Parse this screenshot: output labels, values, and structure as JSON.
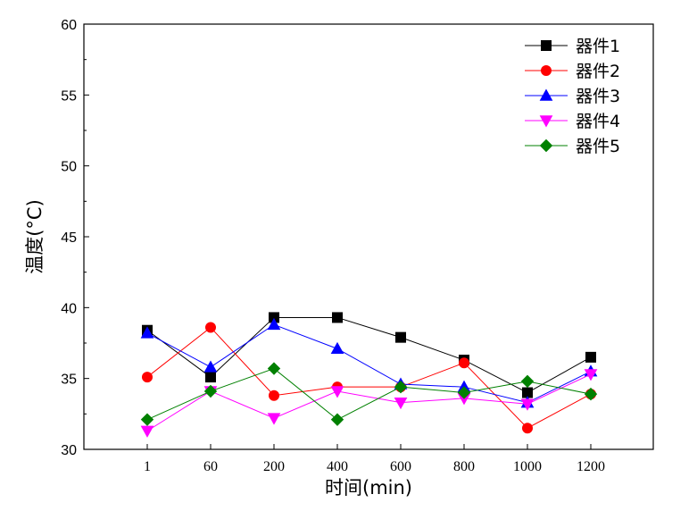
{
  "chart_data": {
    "type": "line",
    "title": "",
    "xlabel": "时间(min)",
    "ylabel": "温度(°C)",
    "categories": [
      "1",
      "60",
      "200",
      "400",
      "600",
      "800",
      "1000",
      "1200"
    ],
    "ylim": [
      30,
      60
    ],
    "yticks": [
      30,
      35,
      40,
      45,
      50,
      55,
      60
    ],
    "grid": false,
    "legend_position": "top-right",
    "series": [
      {
        "name": "器件1",
        "color": "#000000",
        "marker": "square",
        "values": [
          38.4,
          35.1,
          39.3,
          39.3,
          37.9,
          36.3,
          34.0,
          36.5
        ]
      },
      {
        "name": "器件2",
        "color": "#ff0000",
        "marker": "circle",
        "values": [
          35.1,
          38.6,
          33.8,
          34.4,
          34.4,
          36.1,
          31.5,
          33.9
        ]
      },
      {
        "name": "器件3",
        "color": "#0000ff",
        "marker": "triangle-up",
        "values": [
          38.2,
          35.8,
          38.8,
          37.1,
          34.6,
          34.4,
          33.3,
          35.5
        ]
      },
      {
        "name": "器件4",
        "color": "#ff00ff",
        "marker": "triangle-down",
        "values": [
          31.3,
          34.1,
          32.2,
          34.1,
          33.3,
          33.6,
          33.2,
          35.3
        ]
      },
      {
        "name": "器件5",
        "color": "#008000",
        "marker": "diamond",
        "values": [
          32.1,
          34.1,
          35.7,
          32.1,
          34.4,
          34.0,
          34.8,
          33.9
        ]
      }
    ]
  }
}
